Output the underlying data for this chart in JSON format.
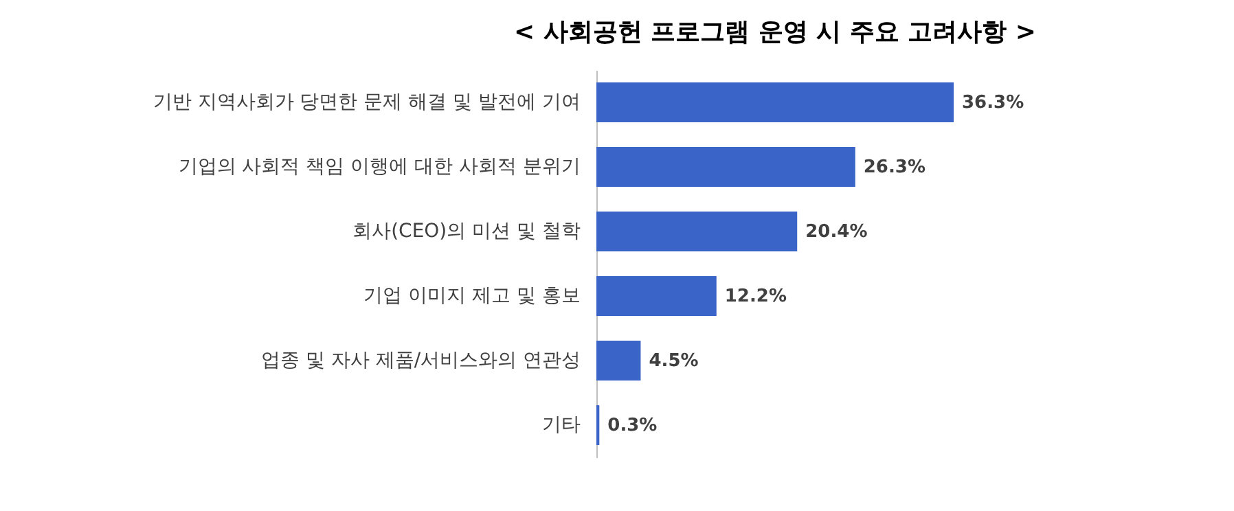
{
  "chart_data": {
    "type": "bar",
    "orientation": "horizontal",
    "title": "< 사회공헌 프로그램 운영 시 주요 고려사항 >",
    "categories": [
      "기반 지역사회가 당면한 문제 해결 및 발전에 기여",
      "기업의 사회적 책임 이행에 대한 사회적 분위기",
      "회사(CEO)의 미션 및 철학",
      "기업 이미지 제고 및 홍보",
      "업종 및 자사 제품/서비스와의 연관성",
      "기타"
    ],
    "values": [
      36.3,
      26.3,
      20.4,
      12.2,
      4.5,
      0.3
    ],
    "value_labels": [
      "36.3%",
      "26.3%",
      "20.4%",
      "12.2%",
      "4.5%",
      "0.3%"
    ],
    "color": "#3a64c8"
  }
}
